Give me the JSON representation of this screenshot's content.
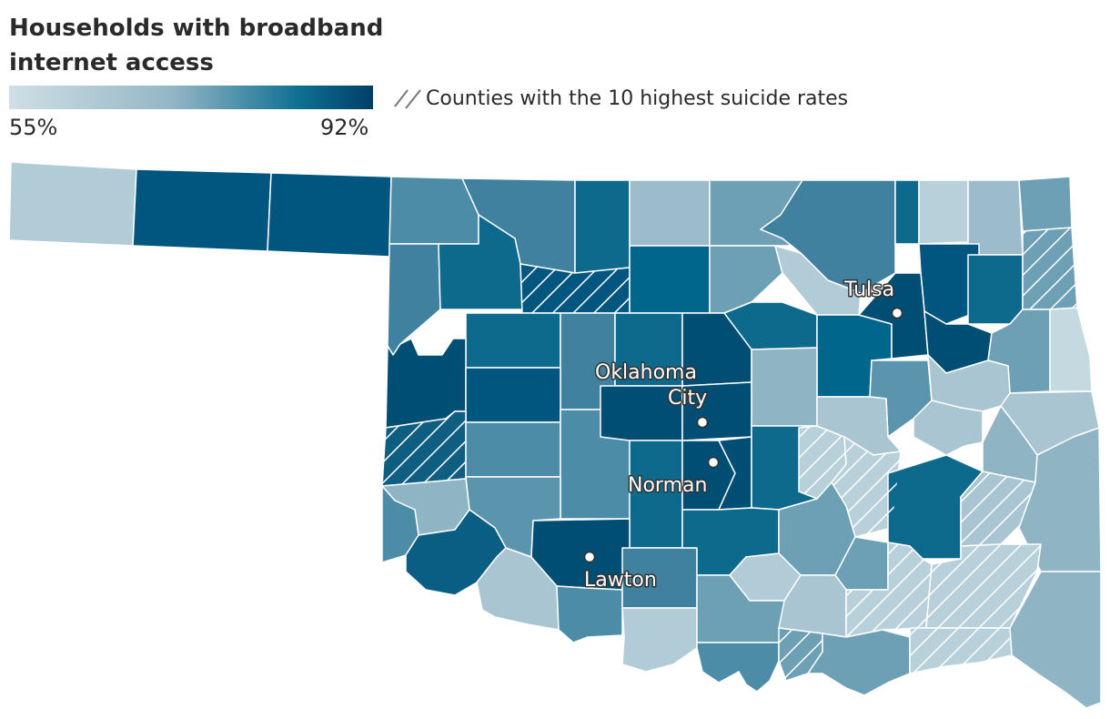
{
  "title": "Households with broadband internet access",
  "legend": {
    "min_label": "55%",
    "max_label": "92%",
    "min_value": 55,
    "max_value": 92,
    "color_low": "#cfdfe5",
    "color_mid": "#8fb4c4",
    "color_high": "#003f66",
    "hatch_label": "Counties with the 10 highest suicide rates"
  },
  "cities": [
    {
      "name": "Tulsa",
      "label_lines": [
        "Tulsa"
      ]
    },
    {
      "name": "Oklahoma City",
      "label_lines": [
        "Oklahoma",
        "City"
      ]
    },
    {
      "name": "Norman",
      "label_lines": [
        "Norman"
      ]
    },
    {
      "name": "Lawton",
      "label_lines": [
        "Lawton"
      ]
    }
  ],
  "colors": {
    "border": "#ffffff",
    "hatch_line": "#ffffff"
  }
}
